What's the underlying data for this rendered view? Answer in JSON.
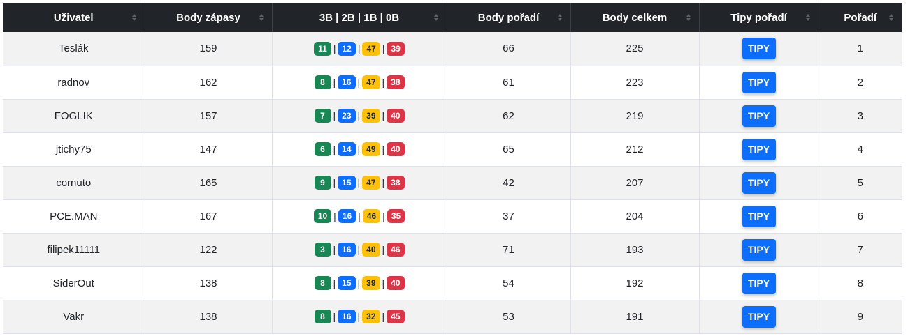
{
  "table": {
    "headers": [
      "Uživatel",
      "Body zápasy",
      "3B | 2B | 1B | 0B",
      "Body pořadí",
      "Body celkem",
      "Tipy pořadí",
      "Pořadí"
    ],
    "rows": [
      {
        "user": "Teslák",
        "match_points": "159",
        "b3": "11",
        "b2": "12",
        "b1": "47",
        "b0": "39",
        "order_points": "66",
        "total": "225",
        "button": "TIPY",
        "rank": "1"
      },
      {
        "user": "radnov",
        "match_points": "162",
        "b3": "8",
        "b2": "16",
        "b1": "47",
        "b0": "38",
        "order_points": "61",
        "total": "223",
        "button": "TIPY",
        "rank": "2"
      },
      {
        "user": "FOGLIK",
        "match_points": "157",
        "b3": "7",
        "b2": "23",
        "b1": "39",
        "b0": "40",
        "order_points": "62",
        "total": "219",
        "button": "TIPY",
        "rank": "3"
      },
      {
        "user": "jtichy75",
        "match_points": "147",
        "b3": "6",
        "b2": "14",
        "b1": "49",
        "b0": "40",
        "order_points": "65",
        "total": "212",
        "button": "TIPY",
        "rank": "4"
      },
      {
        "user": "cornuto",
        "match_points": "165",
        "b3": "9",
        "b2": "15",
        "b1": "47",
        "b0": "38",
        "order_points": "42",
        "total": "207",
        "button": "TIPY",
        "rank": "5"
      },
      {
        "user": "PCE.MAN",
        "match_points": "167",
        "b3": "10",
        "b2": "16",
        "b1": "46",
        "b0": "35",
        "order_points": "37",
        "total": "204",
        "button": "TIPY",
        "rank": "6"
      },
      {
        "user": "filipek11111",
        "match_points": "122",
        "b3": "3",
        "b2": "16",
        "b1": "40",
        "b0": "46",
        "order_points": "71",
        "total": "193",
        "button": "TIPY",
        "rank": "7"
      },
      {
        "user": "SiderOut",
        "match_points": "138",
        "b3": "8",
        "b2": "15",
        "b1": "39",
        "b0": "40",
        "order_points": "54",
        "total": "192",
        "button": "TIPY",
        "rank": "8"
      },
      {
        "user": "Vakr",
        "match_points": "138",
        "b3": "8",
        "b2": "16",
        "b1": "32",
        "b0": "45",
        "order_points": "53",
        "total": "191",
        "button": "TIPY",
        "rank": "9"
      }
    ],
    "separator": "|"
  },
  "colors": {
    "header_bg": "#212529",
    "badge_3b": "#198754",
    "badge_2b": "#0d6efd",
    "badge_1b": "#ffc107",
    "badge_0b": "#dc3545",
    "button": "#0d6efd"
  }
}
